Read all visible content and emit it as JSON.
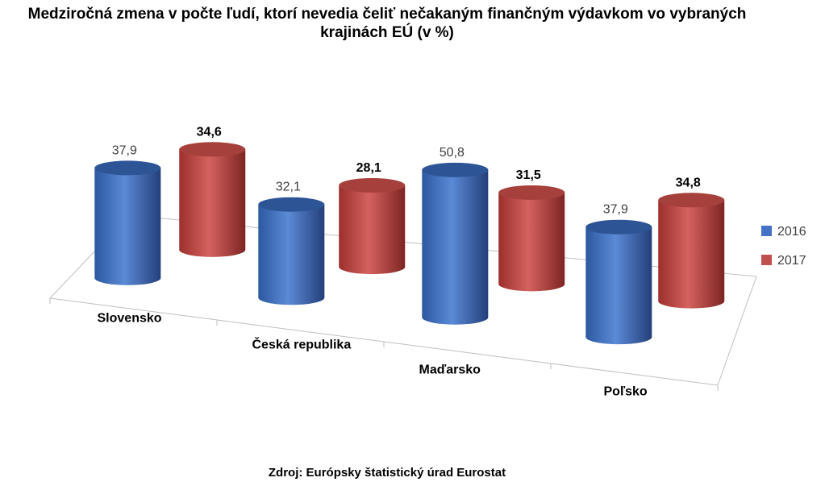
{
  "title": "Medziročná zmena v počte ľudí, ktorí nevedia čeliť nečakaným finančným výdavkom vo vybraných krajinách EÚ (v %)",
  "source": "Zdroj: Európsky štatistický úrad Eurostat",
  "chart_data": {
    "type": "bar",
    "style": "3d-cylinder",
    "title": "Medziročná zmena v počte ľudí, ktorí nevedia čeliť nečakaným finančným výdavkom vo vybraných krajinách EÚ (v %)",
    "categories": [
      "Slovensko",
      "Česká republika",
      "Maďarsko",
      "Poľsko"
    ],
    "series": [
      {
        "name": "2016",
        "color": "#4472C4",
        "values": [
          37.9,
          32.1,
          50.8,
          37.9
        ],
        "labels": [
          "37,9",
          "32,1",
          "50,8",
          "37,9"
        ],
        "label_bold": false
      },
      {
        "name": "2017",
        "color": "#C0504D",
        "values": [
          34.6,
          28.1,
          31.5,
          34.8
        ],
        "labels": [
          "34,6",
          "28,1",
          "31,5",
          "34,8"
        ],
        "label_bold": true
      }
    ],
    "xlabel": "",
    "ylabel": "",
    "ylim": [
      0,
      60
    ],
    "grid": false,
    "legend": "right"
  }
}
